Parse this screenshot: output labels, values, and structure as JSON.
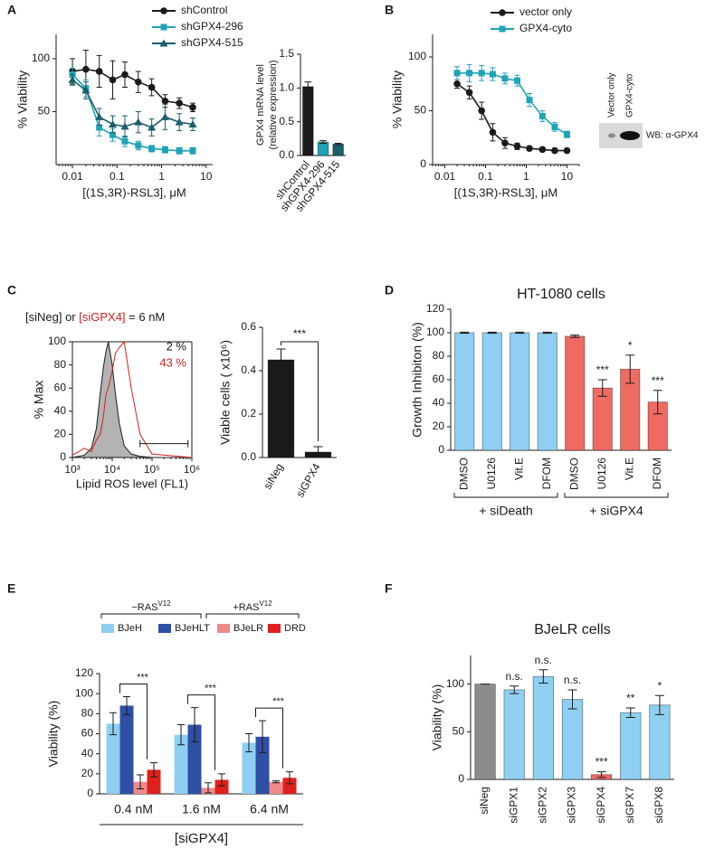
{
  "chart_data": [
    {
      "type": "line",
      "panel": "A",
      "xlabel": "[(1S,3R)-RSL3], μM",
      "ylabel": "% Viability",
      "xscale": "log",
      "legend": "upper right",
      "x": [
        0.01,
        0.02,
        0.04,
        0.08,
        0.15,
        0.3,
        0.6,
        1.2,
        2.5,
        5
      ],
      "xlim": [
        0.0043,
        14
      ],
      "xticks": [
        0.01,
        0.1,
        1,
        10
      ],
      "ylim": [
        0,
        123
      ],
      "yticks": [
        50,
        100
      ],
      "series": [
        {
          "name": "shControl",
          "color": "#1a1a1a",
          "marker": "circle",
          "values": [
            88,
            90,
            88,
            80,
            85,
            78,
            73,
            60,
            58,
            54
          ],
          "errors": [
            12,
            18,
            15,
            18,
            12,
            10,
            8,
            6,
            5,
            4
          ]
        },
        {
          "name": "shGPX4-296",
          "color": "#1fa3b8",
          "marker": "square",
          "values": [
            85,
            72,
            35,
            28,
            22,
            18,
            15,
            14,
            13,
            13
          ],
          "errors": [
            6,
            8,
            8,
            6,
            5,
            4,
            3,
            3,
            3,
            3
          ]
        },
        {
          "name": "shGPX4-515",
          "color": "#1b5e6e",
          "marker": "triangle",
          "values": [
            80,
            70,
            45,
            38,
            36,
            40,
            35,
            45,
            40,
            38
          ],
          "errors": [
            5,
            8,
            8,
            8,
            10,
            10,
            8,
            12,
            8,
            6
          ]
        }
      ]
    },
    {
      "type": "bar",
      "ylabel": [
        "GPX4 mRNA level",
        "(relative expression)"
      ],
      "categories": [
        "shControl",
        "shGPX4-296",
        "shGPX4-515"
      ],
      "values": [
        1.02,
        0.2,
        0.17
      ],
      "errors": [
        0.07,
        0.02,
        0.01
      ],
      "colors": [
        "#1a1a1a",
        "#1fa3b8",
        "#1b5e6e"
      ],
      "ylim": [
        0,
        1.5
      ],
      "yticks": [
        {
          "value": 0,
          "label": "0.0"
        },
        {
          "value": 0.5,
          "label": "0.5"
        },
        {
          "value": 1,
          "label": "1.0"
        },
        {
          "value": 1.5,
          "label": "1.5"
        }
      ]
    },
    {
      "type": "line",
      "panel": "B",
      "xlabel": "[(1S,3R)-RSL3], μM",
      "ylabel": "% Viability",
      "xscale": "log",
      "legend": "upper right",
      "x": [
        0.02,
        0.04,
        0.08,
        0.15,
        0.3,
        0.6,
        1.2,
        2.5,
        5,
        10
      ],
      "xlim": [
        0.005,
        20
      ],
      "xticks": [
        0.01,
        0.1,
        1,
        10
      ],
      "ylim": [
        0,
        121
      ],
      "yticks": [
        0,
        50,
        100
      ],
      "series": [
        {
          "name": "vector only",
          "color": "#1a1a1a",
          "marker": "circle",
          "values": [
            75,
            67,
            50,
            30,
            20,
            17,
            15,
            14,
            13,
            13
          ],
          "errors": [
            4,
            6,
            8,
            8,
            5,
            3,
            2,
            2,
            2,
            2
          ]
        },
        {
          "name": "GPX4-cyto",
          "color": "#1fa3b8",
          "marker": "square",
          "values": [
            85,
            85,
            85,
            84,
            80,
            78,
            60,
            45,
            35,
            28
          ],
          "errors": [
            6,
            8,
            7,
            6,
            5,
            5,
            6,
            5,
            4,
            3
          ]
        }
      ],
      "blot": {
        "lanes": [
          "Vector only",
          "GPX4-cyto"
        ],
        "label": "WB: α-GPX4"
      }
    },
    {
      "type": "area",
      "panel": "C",
      "xlabel": "Lipid ROS level (FL1)",
      "ylabel": "% Max",
      "xscale": "log",
      "header": [
        {
          "text": "[siNeg] or ",
          "color": "#1a1a1a"
        },
        {
          "text": "[siGPX4]",
          "color": "#d0201c"
        },
        {
          "text": " = 6 nM",
          "color": "#1a1a1a"
        }
      ],
      "annotations": [
        {
          "text": "2 %",
          "color": "#1a1a1a"
        },
        {
          "text": "43 %",
          "color": "#d0201c"
        }
      ],
      "x": [
        1000,
        2000,
        3000,
        4000,
        5000,
        6000,
        7000,
        8000,
        10000,
        12000,
        15000,
        20000,
        30000,
        50000,
        100000,
        1000000
      ],
      "xlim": [
        1000,
        1000000
      ],
      "xticks": [
        {
          "value": 1000,
          "label": "10³"
        },
        {
          "value": 10000,
          "label": "10⁴"
        },
        {
          "value": 100000,
          "label": "10⁵"
        },
        {
          "value": 1000000,
          "label": "10⁶"
        }
      ],
      "ylim": [
        0,
        100
      ],
      "yticks": [
        0,
        20,
        40,
        60,
        80,
        100
      ],
      "series": [
        {
          "name": "siNeg",
          "color": "#1a1a1a",
          "fill": "#b3b3b3",
          "values": [
            0,
            2,
            8,
            25,
            55,
            78,
            92,
            100,
            80,
            55,
            30,
            10,
            3,
            1,
            0,
            0
          ]
        },
        {
          "name": "siGPX4",
          "color": "#d0201c",
          "fill": false,
          "values": [
            2,
            8,
            5,
            15,
            20,
            35,
            55,
            60,
            75,
            90,
            95,
            100,
            60,
            20,
            3,
            0
          ]
        }
      ]
    },
    {
      "type": "bar",
      "ylabel": "Viable cells ( x10⁶)",
      "categories": [
        "siNeg",
        "siGPX4"
      ],
      "values": [
        0.45,
        0.025
      ],
      "errors": [
        0.05,
        0.025
      ],
      "color": "#1a1a1a",
      "bracket": "***",
      "ylim": [
        0,
        0.6
      ],
      "yticks": [
        {
          "value": 0,
          "label": "0.0"
        },
        {
          "value": 0.2,
          "label": "0.2"
        },
        {
          "value": 0.4,
          "label": "0.4"
        },
        {
          "value": 0.6,
          "label": "0.6"
        }
      ]
    },
    {
      "type": "bar",
      "panel": "D",
      "title": "HT-1080 cells",
      "ylabel": "Growth Inhibiton (%)",
      "categories": [
        "DMSO",
        "U0126",
        "Vit.E",
        "DFOM",
        "DMSO",
        "U0126",
        "Vit.E",
        "DFOM"
      ],
      "values": [
        100,
        100,
        100,
        100,
        97,
        53,
        69,
        41
      ],
      "errors": [
        0.5,
        0.5,
        0.5,
        0.5,
        1,
        7,
        12,
        10
      ],
      "colors": [
        "#8fd0f2",
        "#8fd0f2",
        "#8fd0f2",
        "#8fd0f2",
        "#ef6b62",
        "#ef6b62",
        "#ef6b62",
        "#ef6b62"
      ],
      "value_annotations": [
        null,
        null,
        null,
        null,
        null,
        "***",
        "*",
        "***"
      ],
      "groups": [
        "+ siDeath",
        "+ siGPX4"
      ],
      "ylim": [
        0,
        120
      ],
      "yticks": [
        0,
        20,
        40,
        60,
        80,
        100,
        120
      ]
    },
    {
      "type": "grouped-bar",
      "panel": "E",
      "xlabel": "[siGPX4]",
      "ylabel": "Viability (%)",
      "legend": "top",
      "legend_groups": [
        {
          "label": "−RAS",
          "sup": "V12"
        },
        {
          "label": "+RAS",
          "sup": "V12"
        }
      ],
      "categories": [
        "0.4 nM",
        "1.6 nM",
        "6.4 nM"
      ],
      "annotations": [
        "***",
        "***",
        "***"
      ],
      "series": [
        {
          "name": "BJeH",
          "color": "#8ecff0",
          "values": [
            70,
            59,
            51
          ],
          "errors": [
            11,
            10,
            9
          ]
        },
        {
          "name": "BJeHLT",
          "color": "#2e4fa3",
          "values": [
            88,
            69,
            57
          ],
          "errors": [
            9,
            17,
            16
          ]
        },
        {
          "name": "BJeLR",
          "color": "#ef8a8a",
          "values": [
            12,
            6,
            12
          ],
          "errors": [
            7,
            5,
            1
          ]
        },
        {
          "name": "DRD",
          "color": "#e0201c",
          "values": [
            24,
            14,
            16
          ],
          "errors": [
            7,
            6,
            6
          ]
        }
      ],
      "ylim": [
        0,
        120
      ],
      "yticks": [
        0,
        20,
        40,
        60,
        80,
        100,
        120
      ]
    },
    {
      "type": "bar",
      "panel": "F",
      "title": "BJeLR cells",
      "ylabel": "Viability (%)",
      "categories": [
        "siNeg",
        "siGPX1",
        "siGPX2",
        "siGPX3",
        "siGPX4",
        "siGPX7",
        "siGPX8"
      ],
      "values": [
        100,
        94,
        108,
        84,
        5,
        70,
        78
      ],
      "errors": [
        0,
        4,
        7,
        10,
        3,
        5,
        10
      ],
      "colors": [
        "#8c8c8c",
        "#8fd0f2",
        "#8fd0f2",
        "#8fd0f2",
        "#ef6b62",
        "#8fd0f2",
        "#8fd0f2"
      ],
      "value_annotations": [
        null,
        "n.s.",
        "n.s.",
        "n.s.",
        "***",
        "**",
        "*"
      ],
      "ylim": [
        0,
        130
      ],
      "yticks": [
        0,
        50,
        100
      ]
    }
  ]
}
